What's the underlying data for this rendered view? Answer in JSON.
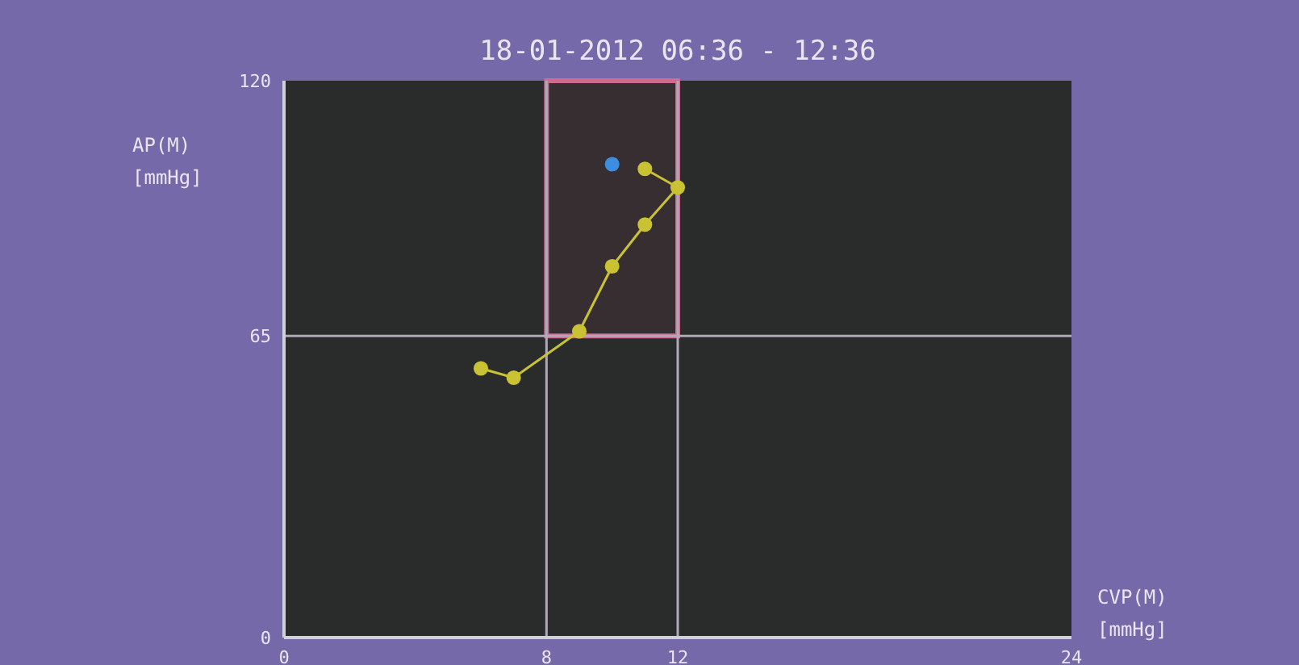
{
  "chart_data": {
    "type": "line",
    "title": "18-01-2012 06:36 - 12:36",
    "xlabel": "CVP(M)\n[mmHg]",
    "ylabel": "AP(M)\n[mmHg]",
    "series": [
      {
        "type": "line",
        "color": "#c9c233",
        "x": [
          6,
          7,
          9,
          10,
          11,
          12,
          11
        ],
        "values": [
          58,
          56,
          66,
          80,
          89,
          97,
          101
        ]
      },
      {
        "type": "scatter",
        "color": "#3d8ee0",
        "x": [
          10
        ],
        "values": [
          102
        ]
      }
    ],
    "xlim": [
      0,
      24
    ],
    "xticks": [
      0,
      8,
      12,
      24
    ],
    "ylim": [
      0,
      120
    ],
    "yticks": [
      0,
      65,
      120
    ],
    "ref_lines": [
      {
        "axis": "x",
        "value": 8,
        "color": "#b0a8b8"
      },
      {
        "axis": "x",
        "value": 12,
        "color": "#b0a8b8"
      },
      {
        "axis": "y",
        "value": 65,
        "color": "#b0a8b8"
      }
    ],
    "bands": [
      {
        "axis": "x",
        "from": 8,
        "to": 12,
        "color": "#d06a90"
      }
    ],
    "marker": "circle"
  }
}
